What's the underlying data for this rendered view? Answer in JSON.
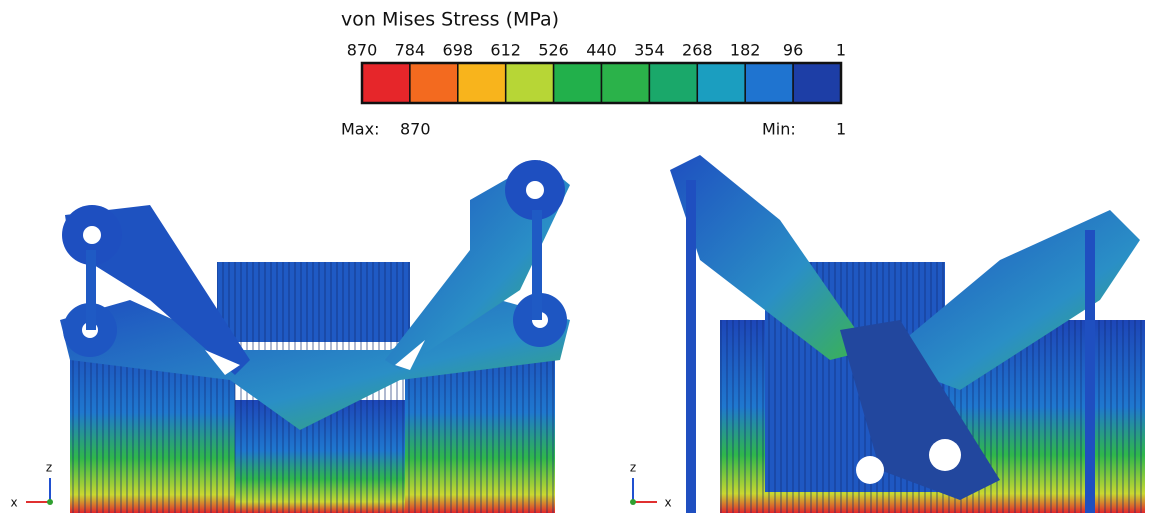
{
  "legend": {
    "title": "von Mises Stress (MPa)",
    "ticks": [
      870,
      784,
      698,
      612,
      526,
      440,
      354,
      268,
      182,
      96,
      1
    ],
    "colors": [
      "#e6262a",
      "#f36a1f",
      "#f8b41c",
      "#b7d636",
      "#22b04b",
      "#2bb24a",
      "#1aa86a",
      "#1b9ec0",
      "#1f74d0",
      "#1d3ea6"
    ],
    "max_label": "Max:",
    "max_value": 870,
    "min_label": "Min:",
    "min_value": 1
  },
  "views": [
    {
      "axes": [
        "z",
        "x"
      ]
    },
    {
      "axes": [
        "z",
        "x"
      ]
    }
  ]
}
